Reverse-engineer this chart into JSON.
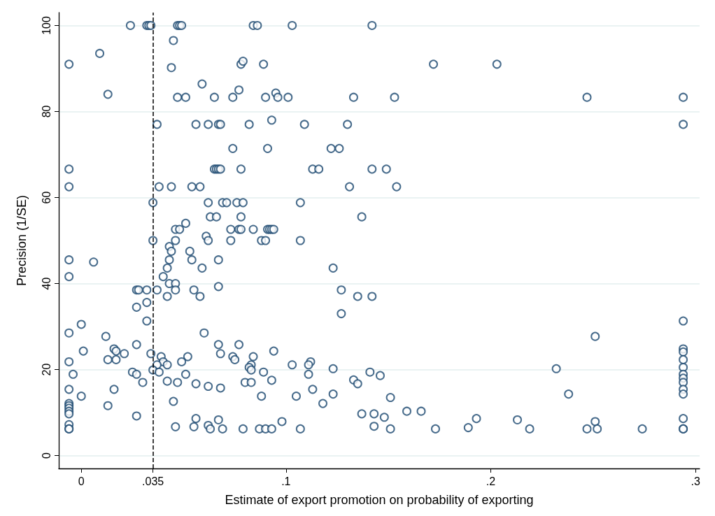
{
  "chart_data": {
    "type": "scatter",
    "xlabel": "Estimate of export promotion on probability of exporting",
    "ylabel": "Precision (1/SE)",
    "color": "#1a476f",
    "marker": "circle",
    "grid": "y",
    "xlim": [
      -0.011,
      0.302
    ],
    "ylim": [
      -3,
      103
    ],
    "xticks": [
      0,
      {
        "value": 0.035,
        "label": ".035"
      },
      {
        "value": 0.1,
        "label": ".1"
      },
      {
        "value": 0.2,
        "label": ".2"
      },
      {
        "value": 0.3,
        "label": ".3"
      }
    ],
    "yticks": [
      0,
      20,
      40,
      60,
      80,
      100
    ],
    "ref_lines": [
      {
        "axis": "x",
        "value": 0.035,
        "label": null,
        "color": "#000000",
        "line_style": "dashed"
      }
    ],
    "x": [
      0.024,
      0.032,
      0.033,
      0.034,
      0.047,
      0.048,
      0.049,
      0.084,
      0.086,
      0.103,
      0.142,
      0.045,
      0.009,
      -0.006,
      0.078,
      0.079,
      0.089,
      0.172,
      0.203,
      0.044,
      0.013,
      0.077,
      0.095,
      0.059,
      0.047,
      0.051,
      0.065,
      0.074,
      0.09,
      0.096,
      0.101,
      0.133,
      0.153,
      0.247,
      0.294,
      0.037,
      0.056,
      0.062,
      0.067,
      0.068,
      0.082,
      0.109,
      0.13,
      0.294,
      0.093,
      0.074,
      0.091,
      0.122,
      0.126,
      -0.006,
      0.065,
      0.066,
      0.067,
      0.068,
      0.078,
      0.113,
      0.116,
      0.142,
      0.149,
      -0.006,
      0.038,
      0.044,
      0.054,
      0.058,
      0.131,
      0.154,
      0.035,
      0.062,
      0.069,
      0.071,
      0.076,
      0.079,
      0.107,
      0.063,
      0.066,
      0.078,
      0.137,
      0.051,
      0.046,
      0.048,
      0.073,
      0.077,
      0.078,
      0.084,
      0.091,
      0.092,
      0.093,
      0.094,
      0.061,
      0.035,
      0.046,
      0.062,
      0.073,
      0.088,
      0.09,
      0.107,
      0.043,
      0.044,
      0.053,
      -0.006,
      0.043,
      0.054,
      0.067,
      0.006,
      0.042,
      0.059,
      0.123,
      -0.006,
      0.04,
      0.043,
      0.046,
      0.067,
      0.027,
      0.028,
      0.032,
      0.037,
      0.046,
      0.055,
      0.127,
      0.042,
      0.058,
      0.135,
      0.142,
      0.027,
      0.032,
      0.127,
      0.032,
      0.294,
      0,
      -0.006,
      0.06,
      0.012,
      0.251,
      0.027,
      0.067,
      0.077,
      0.016,
      0.294,
      0.001,
      0.017,
      0.094,
      0.294,
      0.021,
      0.034,
      0.068,
      0.039,
      0.052,
      0.074,
      0.084,
      0.013,
      0.017,
      0.075,
      0.294,
      -0.006,
      0.04,
      0.049,
      0.112,
      0.037,
      0.042,
      0.083,
      0.111,
      0.103,
      0.082,
      0.294,
      0.123,
      0.232,
      0.035,
      0.083,
      0.025,
      0.038,
      0.089,
      0.141,
      -0.004,
      0.027,
      0.051,
      0.111,
      0.294,
      0.146,
      0.294,
      0.133,
      0.093,
      0.042,
      0.03,
      0.047,
      0.08,
      0.083,
      0.294,
      0.056,
      0.135,
      0.062,
      0.068,
      -0.006,
      0.016,
      0.113,
      0.294,
      0.123,
      0.238,
      0.294,
      0,
      0.088,
      0.105,
      0.151,
      0.045,
      -0.006,
      0.118,
      -0.006,
      0.013,
      -0.006,
      -0.006,
      0.159,
      0.166,
      -0.006,
      0.137,
      0.143,
      0.027,
      0.148,
      0.056,
      0.193,
      0.294,
      0.067,
      0.213,
      0.098,
      0.251,
      -0.006,
      0.062,
      0.143,
      0.046,
      0.055,
      0.189,
      -0.006,
      -0.006,
      0.063,
      0.069,
      0.079,
      0.087,
      0.09,
      0.093,
      0.107,
      0.151,
      0.173,
      0.219,
      0.247,
      0.252,
      0.274,
      0.294,
      0.294
    ],
    "values": [
      100,
      100,
      100,
      100,
      100,
      100,
      100,
      100,
      100,
      100,
      100,
      96.5,
      93.5,
      91,
      91,
      91.7,
      91,
      91,
      91,
      90.2,
      84,
      85,
      84.3,
      86.4,
      83.3,
      83.3,
      83.3,
      83.3,
      83.3,
      83.3,
      83.3,
      83.3,
      83.3,
      83.3,
      83.3,
      77,
      77,
      77,
      77,
      77,
      77,
      77,
      77,
      77,
      78,
      71.4,
      71.4,
      71.4,
      71.4,
      66.6,
      66.6,
      66.6,
      66.6,
      66.6,
      66.6,
      66.6,
      66.6,
      66.6,
      66.6,
      62.5,
      62.5,
      62.5,
      62.5,
      62.5,
      62.5,
      62.5,
      58.8,
      58.8,
      58.8,
      58.8,
      58.8,
      58.8,
      58.8,
      55.5,
      55.5,
      55.5,
      55.5,
      54,
      52.6,
      52.6,
      52.6,
      52.6,
      52.6,
      52.6,
      52.6,
      52.6,
      52.6,
      52.6,
      51,
      50,
      50,
      50,
      50,
      50,
      50,
      50,
      48.6,
      47.5,
      47.5,
      45.5,
      45.5,
      45.5,
      45.5,
      45,
      43.6,
      43.6,
      43.6,
      41.6,
      41.6,
      40,
      40,
      39.3,
      38.5,
      38.5,
      38.5,
      38.5,
      38.5,
      38.5,
      38.5,
      37,
      37,
      37,
      37,
      34.5,
      35.6,
      33,
      31.3,
      31.3,
      30.5,
      28.5,
      28.5,
      27.7,
      27.7,
      25.8,
      25.8,
      25.8,
      24.8,
      24.8,
      24.3,
      24.3,
      24.3,
      24.1,
      23.7,
      23.7,
      23.7,
      23,
      23,
      23,
      23,
      22.3,
      22.3,
      22.3,
      22.3,
      21.8,
      21.8,
      21.8,
      21.8,
      21.1,
      21.1,
      21.1,
      21.1,
      21.1,
      20.5,
      20.5,
      20.2,
      20.2,
      19.9,
      19.9,
      19.4,
      19.4,
      19.4,
      19.4,
      18.9,
      18.9,
      18.9,
      18.9,
      18.9,
      18.6,
      18,
      17.6,
      17.5,
      17.3,
      17,
      17,
      17,
      17,
      17,
      16.7,
      16.7,
      16.1,
      15.7,
      15.4,
      15.4,
      15.4,
      15.4,
      14.3,
      14.3,
      14.3,
      13.8,
      13.8,
      13.8,
      13.5,
      12.6,
      12.1,
      12.1,
      11.6,
      11.6,
      11,
      10.3,
      10.3,
      10.3,
      9.7,
      9.7,
      9.7,
      9.2,
      8.9,
      8.6,
      8.6,
      8.6,
      8.3,
      8.3,
      7.9,
      7.9,
      7.2,
      7,
      6.8,
      6.7,
      6.7,
      6.5,
      6.2,
      6.2,
      6.2,
      6.2,
      6.2,
      6.2,
      6.2,
      6.2,
      6.2,
      6.2,
      6.2,
      6.2,
      6.2,
      6.2,
      6.2,
      6.2,
      6.2
    ]
  }
}
